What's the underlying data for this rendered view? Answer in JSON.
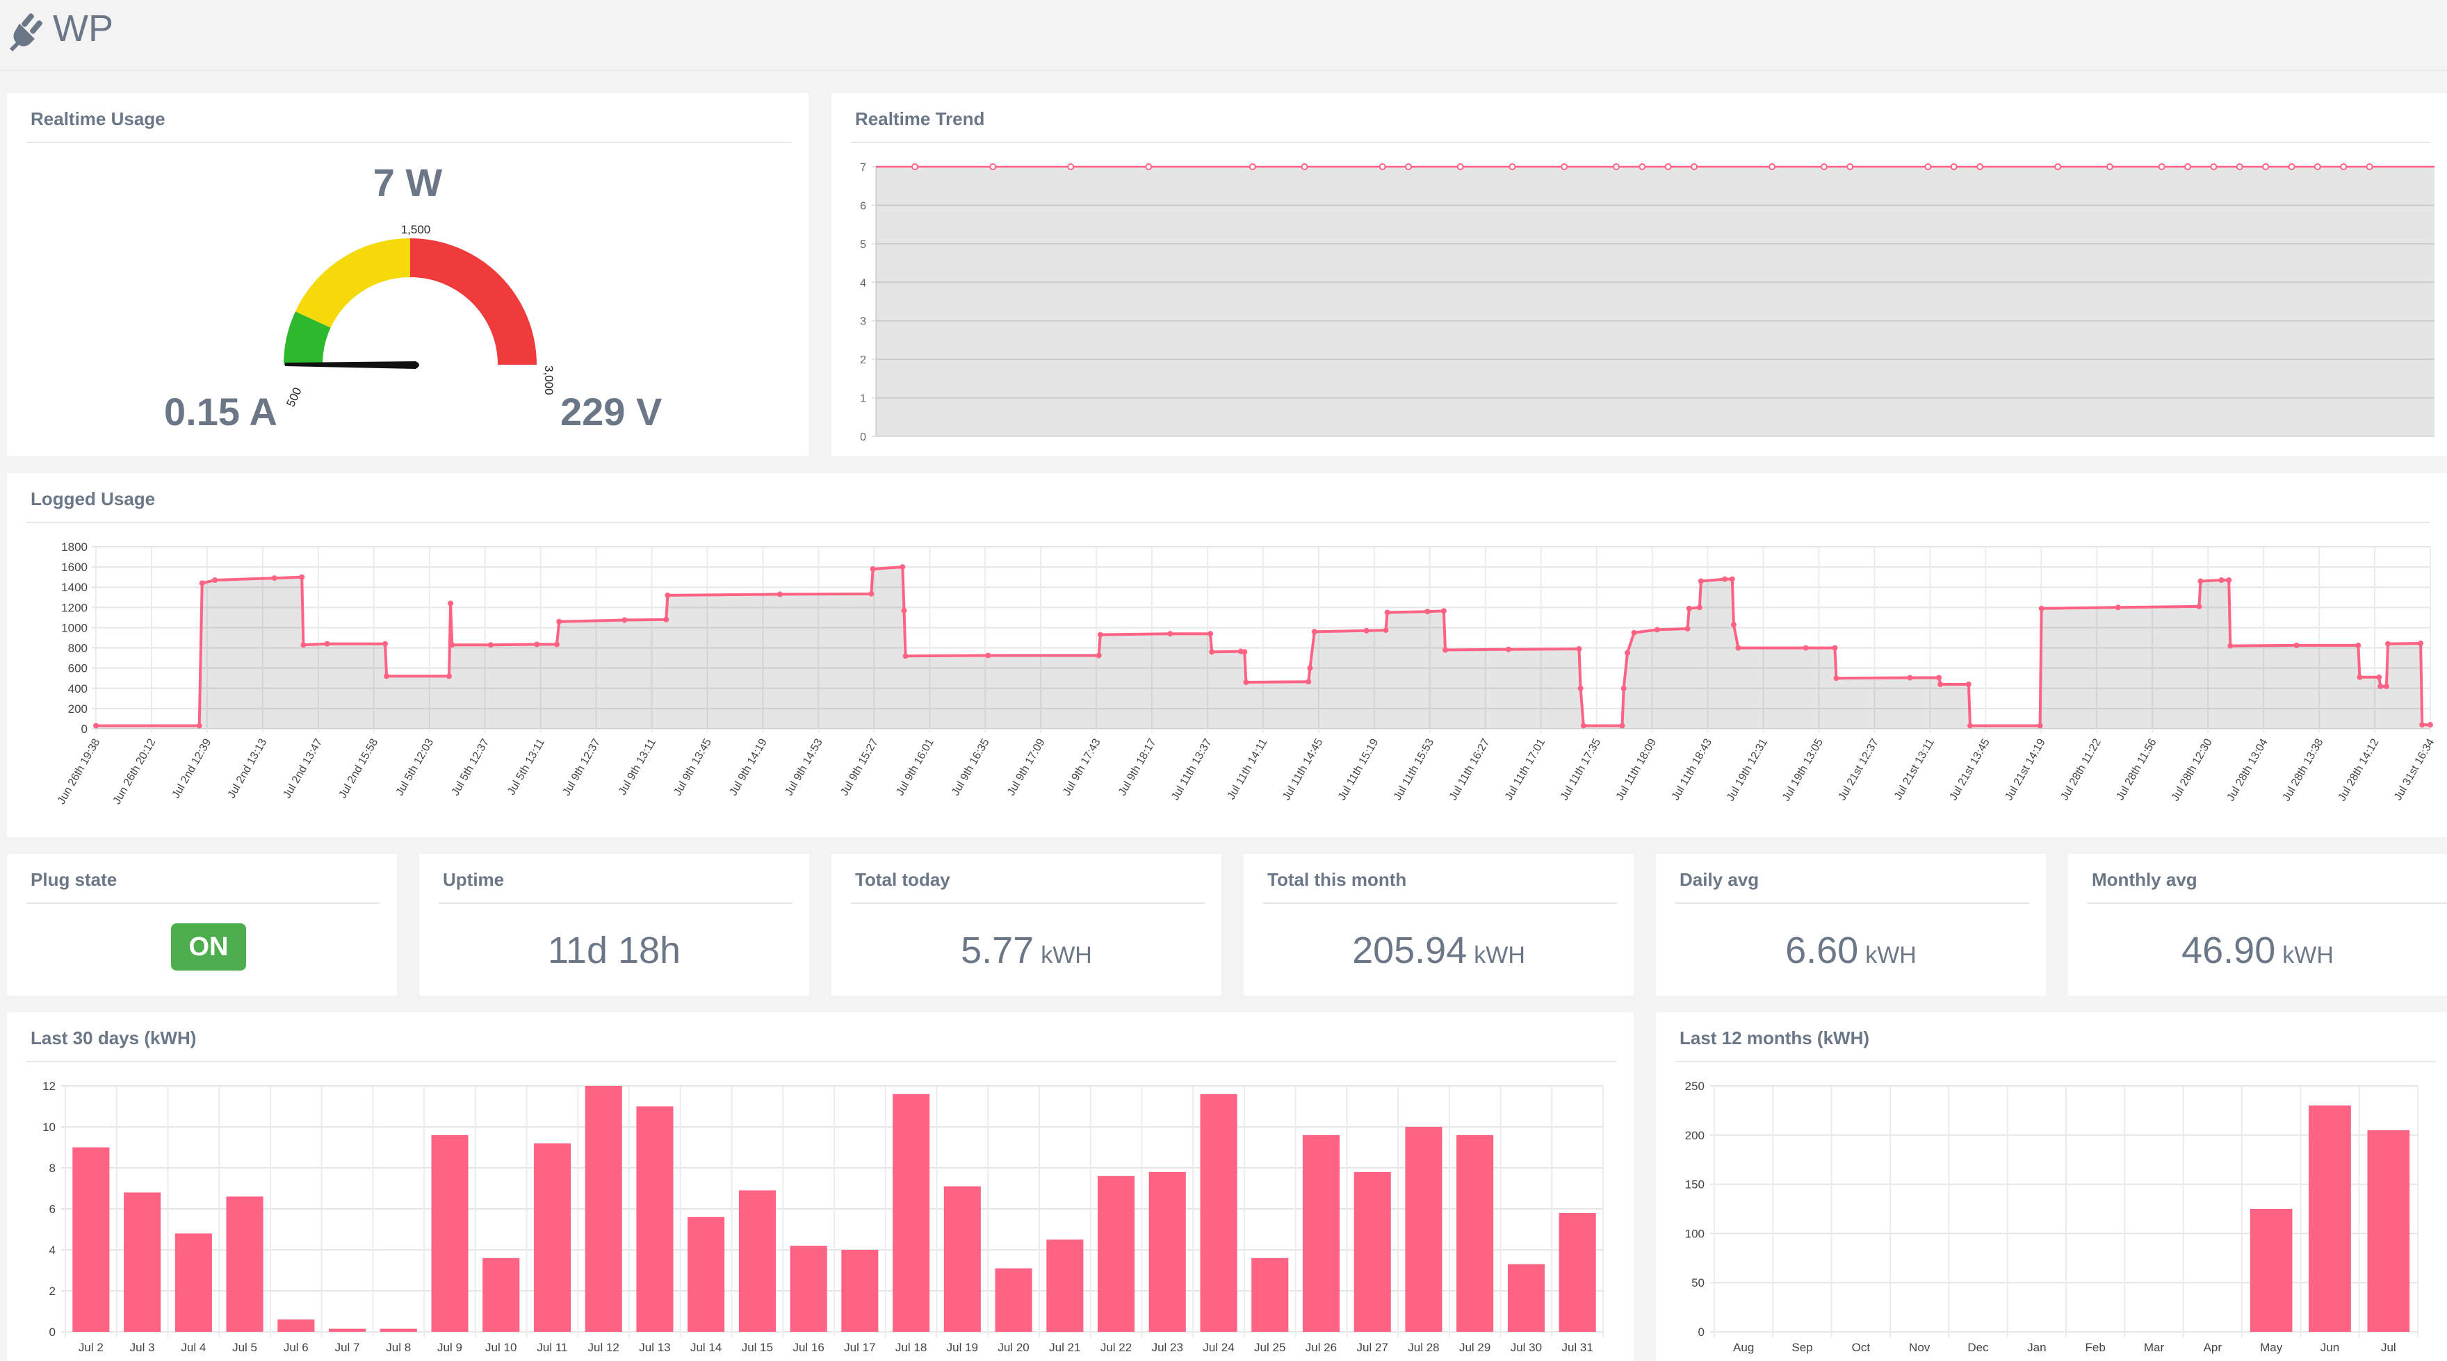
{
  "app": {
    "title": "WP",
    "icon": "plug-icon"
  },
  "colors": {
    "accent": "#ff6384",
    "gauge_green": "#2eb82e",
    "gauge_yellow": "#f5d90a",
    "gauge_red": "#ef3b3b",
    "badge_on": "#4cae4c",
    "text": "#6b7786"
  },
  "realtime_usage": {
    "title": "Realtime Usage",
    "power": "7 W",
    "current": "0.15 A",
    "voltage": "229 V",
    "gauge": {
      "min": 0,
      "max": 3000,
      "value": 7,
      "ticks": [
        "500",
        "1,500",
        "3,000"
      ],
      "green_to": 500,
      "yellow_to": 1500
    }
  },
  "realtime_trend": {
    "title": "Realtime Trend"
  },
  "logged_usage": {
    "title": "Logged Usage"
  },
  "plug_state": {
    "title": "Plug state",
    "value": "ON"
  },
  "uptime": {
    "title": "Uptime",
    "value": "11d 18h"
  },
  "total_today": {
    "title": "Total today",
    "value": "5.77",
    "unit": "kWH"
  },
  "total_month": {
    "title": "Total this month",
    "value": "205.94",
    "unit": "kWH"
  },
  "daily_avg": {
    "title": "Daily avg",
    "value": "6.60",
    "unit": "kWH"
  },
  "monthly_avg": {
    "title": "Monthly avg",
    "value": "46.90",
    "unit": "kWH"
  },
  "last30": {
    "title": "Last 30 days (kWH)"
  },
  "last12": {
    "title": "Last 12 months (kWH)"
  },
  "chart_data": [
    {
      "id": "realtime_trend",
      "type": "line",
      "ylim": [
        0,
        7
      ],
      "yticks": [
        0,
        1,
        2,
        3,
        4,
        5,
        6,
        7
      ],
      "values": [
        7,
        7,
        7,
        7,
        7,
        7,
        7,
        7,
        7,
        7,
        7,
        7,
        7,
        7,
        7,
        7,
        7,
        7,
        7,
        7,
        7,
        7,
        7,
        7,
        7,
        7,
        7,
        7,
        7,
        7,
        7,
        7,
        7,
        7,
        7,
        7,
        7,
        7,
        7,
        7,
        7,
        7,
        7,
        7,
        7,
        7,
        7,
        7,
        7,
        7,
        7,
        7,
        7,
        7,
        7,
        7,
        7,
        7,
        7,
        7
      ],
      "markers": [
        0.03,
        0.09,
        0.15,
        0.21,
        0.29,
        0.33,
        0.39,
        0.41,
        0.45,
        0.49,
        0.53,
        0.57,
        0.59,
        0.61,
        0.63,
        0.69,
        0.73,
        0.75,
        0.81,
        0.83,
        0.85,
        0.91,
        0.95,
        0.99,
        1.01,
        1.03,
        1.05,
        1.07,
        1.09,
        1.11,
        1.13,
        1.15
      ]
    },
    {
      "id": "logged_usage",
      "type": "line",
      "ylim": [
        0,
        1800
      ],
      "yticks": [
        0,
        200,
        400,
        600,
        800,
        1000,
        1200,
        1400,
        1600,
        1800
      ],
      "xticks": [
        "Jun 26th 19:38",
        "Jun 26th 20:12",
        "Jul 2nd 12:39",
        "Jul 2nd 13:13",
        "Jul 2nd 13:47",
        "Jul 2nd 15:58",
        "Jul 5th 12:03",
        "Jul 5th 12:37",
        "Jul 5th 13:11",
        "Jul 9th 12:37",
        "Jul 9th 13:11",
        "Jul 9th 13:45",
        "Jul 9th 14:19",
        "Jul 9th 14:53",
        "Jul 9th 15:27",
        "Jul 9th 16:01",
        "Jul 9th 16:35",
        "Jul 9th 17:09",
        "Jul 9th 17:43",
        "Jul 9th 18:17",
        "Jul 11th 13:37",
        "Jul 11th 14:11",
        "Jul 11th 14:45",
        "Jul 11th 15:19",
        "Jul 11th 15:53",
        "Jul 11th 16:27",
        "Jul 11th 17:01",
        "Jul 11th 17:35",
        "Jul 11th 18:09",
        "Jul 11th 18:43",
        "Jul 19th 12:31",
        "Jul 19th 13:05",
        "Jul 21st 12:37",
        "Jul 21st 13:11",
        "Jul 21st 13:45",
        "Jul 21st 14:19",
        "Jul 28th 11:22",
        "Jul 28th 11:56",
        "Jul 28th 12:30",
        "Jul 28th 13:04",
        "Jul 28th 13:38",
        "Jul 28th 14:12",
        "Jul 31st 16:34"
      ],
      "series": [
        [
          0,
          30
        ],
        [
          0.0695,
          30
        ],
        [
          0.0714,
          1440
        ],
        [
          0.08,
          1470
        ],
        [
          0.12,
          1490
        ],
        [
          0.1385,
          1500
        ],
        [
          0.1395,
          830
        ],
        [
          0.1555,
          840
        ],
        [
          0.1945,
          840
        ],
        [
          0.1955,
          520
        ],
        [
          0.2375,
          520
        ],
        [
          0.2385,
          1240
        ],
        [
          0.2395,
          830
        ],
        [
          0.2655,
          830
        ],
        [
          0.2965,
          835
        ],
        [
          0.31,
          835
        ],
        [
          0.3115,
          1060
        ],
        [
          0.3555,
          1075
        ],
        [
          0.3835,
          1080
        ],
        [
          0.3845,
          1320
        ],
        [
          0.46,
          1330
        ],
        [
          0.5215,
          1335
        ],
        [
          0.5225,
          1580
        ],
        [
          0.5425,
          1600
        ],
        [
          0.5435,
          1170
        ],
        [
          0.5445,
          720
        ],
        [
          0.6,
          725
        ],
        [
          0.6745,
          725
        ],
        [
          0.6755,
          930
        ],
        [
          0.7225,
          940
        ],
        [
          0.7495,
          940
        ],
        [
          0.7505,
          760
        ],
        [
          0.77,
          765
        ],
        [
          0.7725,
          760
        ],
        [
          0.7735,
          460
        ],
        [
          0.8155,
          465
        ],
        [
          0.8165,
          600
        ],
        [
          0.8195,
          960
        ],
        [
          0.8545,
          970
        ],
        [
          0.8675,
          975
        ],
        [
          0.8685,
          1150
        ],
        [
          0.8955,
          1160
        ],
        [
          0.9065,
          1165
        ],
        [
          0.9075,
          780
        ],
        [
          0.95,
          785
        ],
        [
          0.9975,
          790
        ],
        [
          0.9985,
          400
        ],
        [
          1.0005,
          30
        ],
        [
          1.0265,
          30
        ],
        [
          1.0275,
          400
        ],
        [
          1.03,
          750
        ],
        [
          1.0345,
          950
        ],
        [
          1.05,
          980
        ],
        [
          1.0705,
          990
        ],
        [
          1.0715,
          1190
        ],
        [
          1.0785,
          1200
        ],
        [
          1.0795,
          1460
        ],
        [
          1.0955,
          1480
        ],
        [
          1.1005,
          1480
        ],
        [
          1.1015,
          1030
        ],
        [
          1.1045,
          800
        ],
        [
          1.15,
          800
        ],
        [
          1.1695,
          800
        ],
        [
          1.1705,
          500
        ],
        [
          1.22,
          505
        ],
        [
          1.2395,
          505
        ],
        [
          1.2405,
          440
        ],
        [
          1.2595,
          440
        ],
        [
          1.2605,
          30
        ],
        [
          1.3075,
          30
        ],
        [
          1.3085,
          1190
        ],
        [
          1.36,
          1200
        ],
        [
          1.4145,
          1210
        ],
        [
          1.4155,
          1460
        ],
        [
          1.4295,
          1470
        ],
        [
          1.4345,
          1470
        ],
        [
          1.4355,
          820
        ],
        [
          1.48,
          825
        ],
        [
          1.5215,
          825
        ],
        [
          1.5225,
          510
        ],
        [
          1.5355,
          510
        ],
        [
          1.5365,
          420
        ],
        [
          1.5405,
          420
        ],
        [
          1.5415,
          840
        ],
        [
          1.5635,
          845
        ],
        [
          1.5645,
          40
        ],
        [
          1.57,
          40
        ]
      ]
    },
    {
      "id": "last30",
      "type": "bar",
      "categories": [
        "Jul 2",
        "Jul 3",
        "Jul 4",
        "Jul 5",
        "Jul 6",
        "Jul 7",
        "Jul 8",
        "Jul 9",
        "Jul 10",
        "Jul 11",
        "Jul 12",
        "Jul 13",
        "Jul 14",
        "Jul 15",
        "Jul 16",
        "Jul 17",
        "Jul 18",
        "Jul 19",
        "Jul 20",
        "Jul 21",
        "Jul 22",
        "Jul 23",
        "Jul 24",
        "Jul 25",
        "Jul 26",
        "Jul 27",
        "Jul 28",
        "Jul 29",
        "Jul 30",
        "Jul 31"
      ],
      "values": [
        9.0,
        6.8,
        4.8,
        6.6,
        0.6,
        0.15,
        0.15,
        9.6,
        3.6,
        9.2,
        12.0,
        11.0,
        5.6,
        6.9,
        4.2,
        4.0,
        11.6,
        7.1,
        3.1,
        4.5,
        7.6,
        7.8,
        11.6,
        3.6,
        9.6,
        7.8,
        10.0,
        9.6,
        3.3,
        5.8
      ],
      "ylim": [
        0,
        12
      ],
      "yticks": [
        0,
        2,
        4,
        6,
        8,
        10,
        12
      ]
    },
    {
      "id": "last12",
      "type": "bar",
      "categories": [
        "Aug",
        "Sep",
        "Oct",
        "Nov",
        "Dec",
        "Jan",
        "Feb",
        "Mar",
        "Apr",
        "May",
        "Jun",
        "Jul"
      ],
      "values": [
        0,
        0,
        0,
        0,
        0,
        0,
        0,
        0,
        0,
        125,
        230,
        205
      ],
      "ylim": [
        0,
        250
      ],
      "yticks": [
        0,
        50,
        100,
        150,
        200,
        250
      ]
    }
  ]
}
